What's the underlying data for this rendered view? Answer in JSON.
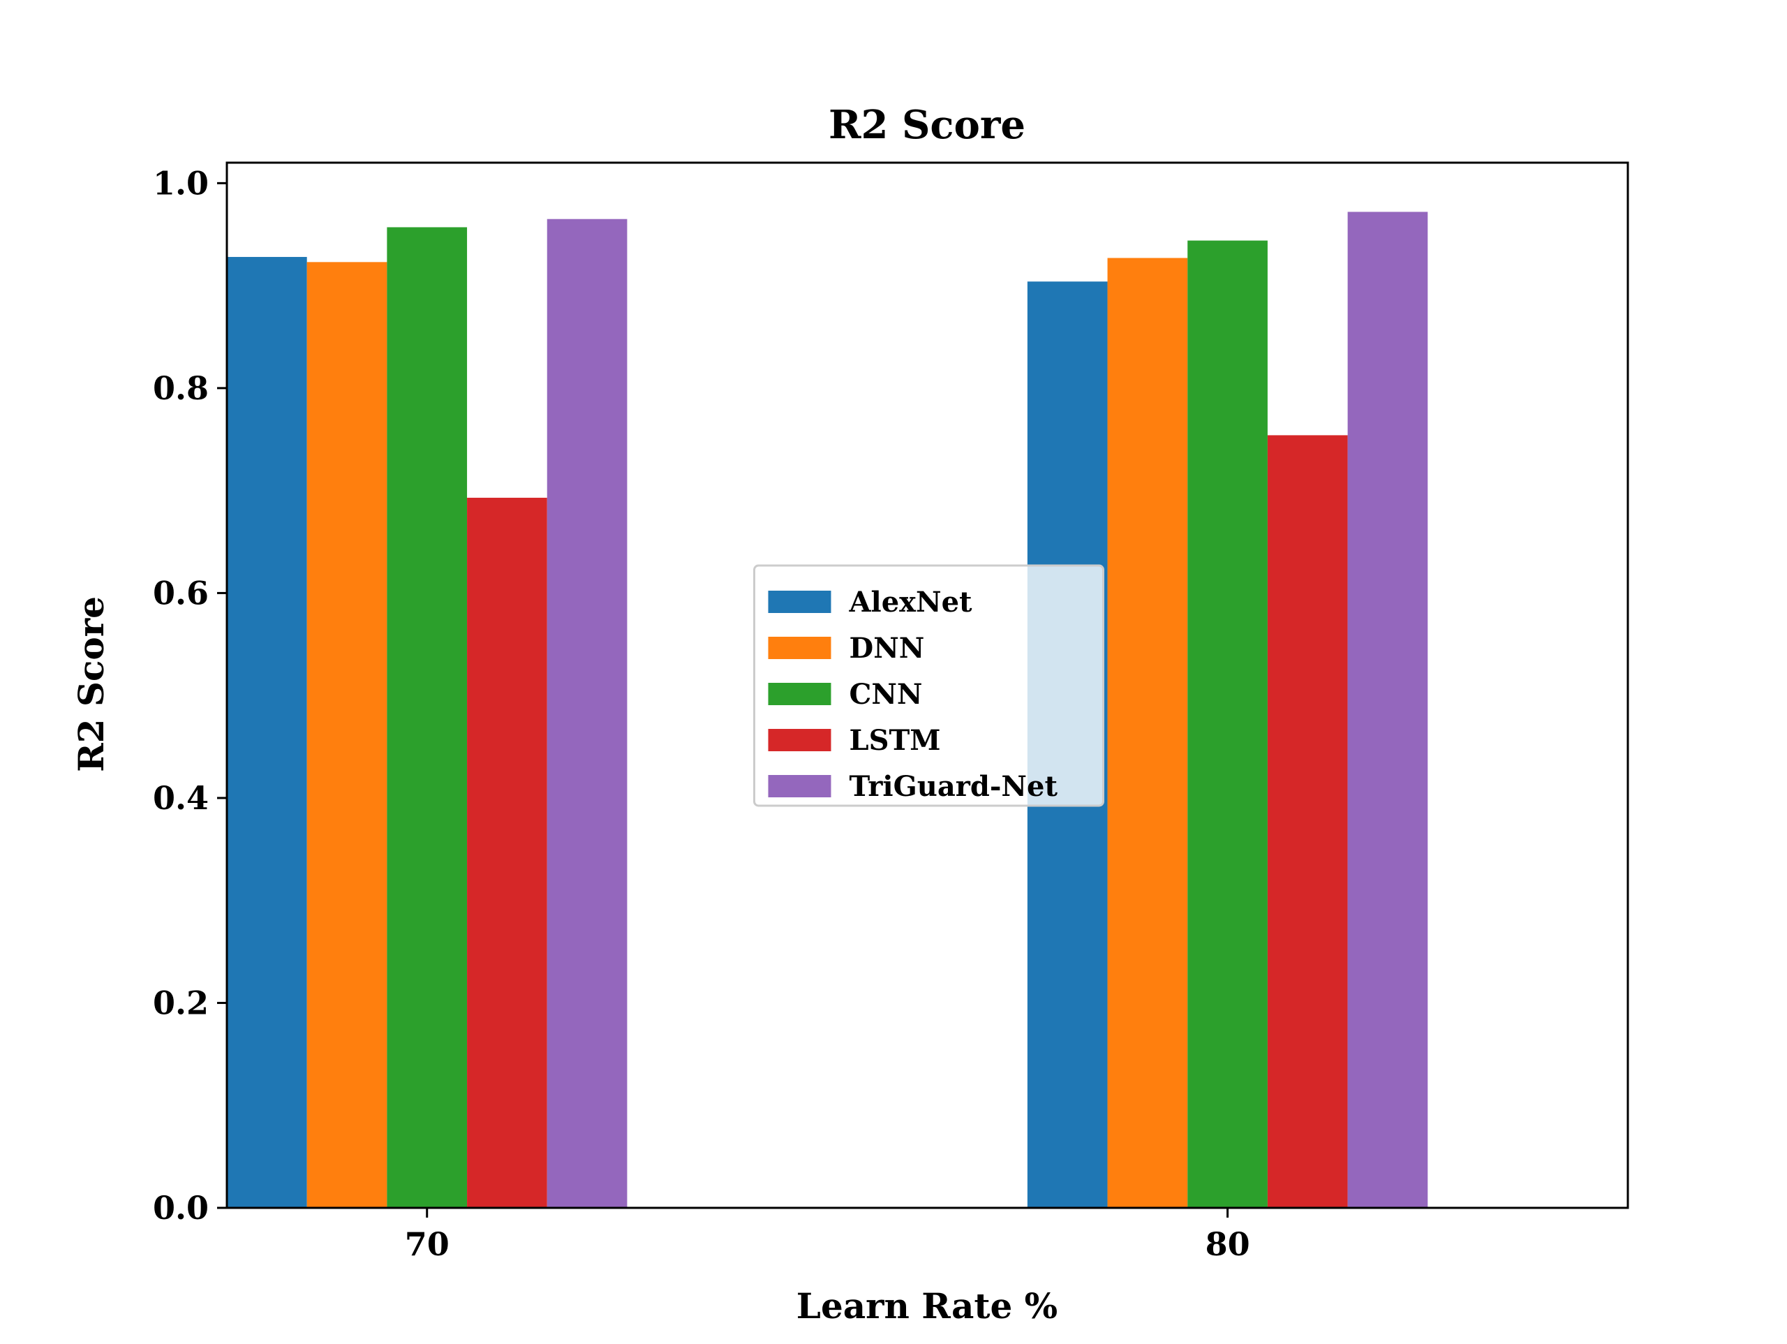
{
  "chart_data": {
    "type": "bar",
    "title": "R2 Score",
    "xlabel": "Learn Rate %",
    "ylabel": "R2 Score",
    "categories": [
      "70",
      "80"
    ],
    "ylim": [
      0,
      1.02
    ],
    "yticks": [
      "0.0",
      "0.2",
      "0.4",
      "0.6",
      "0.8",
      "1.0"
    ],
    "ytick_values": [
      0.0,
      0.2,
      0.4,
      0.6,
      0.8,
      1.0
    ],
    "grid": false,
    "legend_position": "center",
    "series": [
      {
        "name": "AlexNet",
        "color": "#1f77b4",
        "values": [
          0.928,
          0.904
        ]
      },
      {
        "name": "DNN",
        "color": "#ff7f0e",
        "values": [
          0.923,
          0.927
        ]
      },
      {
        "name": "CNN",
        "color": "#2ca02c",
        "values": [
          0.957,
          0.944
        ]
      },
      {
        "name": "LSTM",
        "color": "#d62728",
        "values": [
          0.693,
          0.754
        ]
      },
      {
        "name": "TriGuard-Net",
        "color": "#9467bd",
        "values": [
          0.965,
          0.972
        ]
      }
    ]
  }
}
